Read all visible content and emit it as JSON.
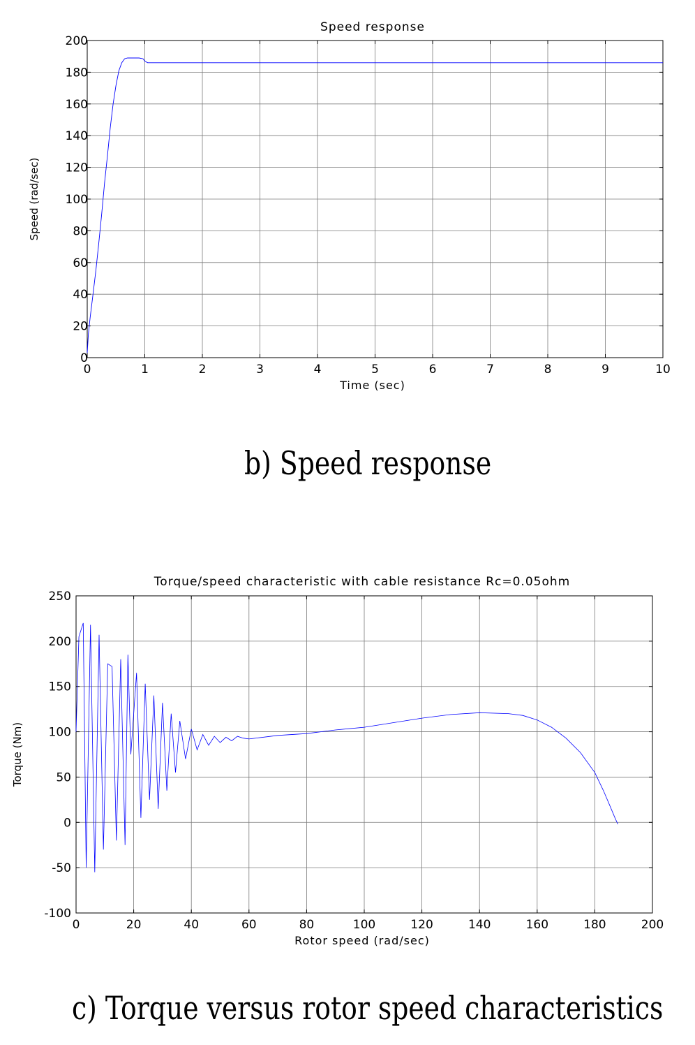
{
  "charts": [
    {
      "caption": "b) Speed response",
      "type": "line",
      "title": "Speed response",
      "xlabel": "Time (sec)",
      "ylabel": "Speed (rad/sec)",
      "xlim": [
        0,
        10
      ],
      "ylim": [
        0,
        200
      ],
      "xticks": [
        0,
        1,
        2,
        3,
        4,
        5,
        6,
        7,
        8,
        9,
        10
      ],
      "yticks": [
        0,
        20,
        40,
        60,
        80,
        100,
        120,
        140,
        160,
        180,
        200
      ],
      "grid": true,
      "color": "#0000ff",
      "series": [
        {
          "x": [
            0,
            0.02,
            0.05,
            0.1,
            0.15,
            0.2,
            0.25,
            0.3,
            0.35,
            0.4,
            0.45,
            0.5,
            0.55,
            0.6,
            0.65,
            0.7,
            0.8,
            0.9,
            0.97,
            1.0,
            1.05,
            2,
            3,
            4,
            5,
            6,
            7,
            8,
            9,
            10
          ],
          "y": [
            3,
            15,
            25,
            40,
            55,
            72,
            90,
            110,
            127,
            145,
            160,
            172,
            181,
            186,
            188.5,
            189,
            189,
            189,
            188.5,
            187,
            186,
            186,
            186,
            186,
            186,
            186,
            186,
            186,
            186,
            186
          ]
        }
      ]
    },
    {
      "caption": "c) Torque versus rotor speed characteristics",
      "type": "line",
      "title": "Torque/speed characteristic with cable resistance Rc=0.05ohm",
      "xlabel": "Rotor speed (rad/sec)",
      "ylabel": "Torque (Nm)",
      "xlim": [
        0,
        200
      ],
      "ylim": [
        -100,
        250
      ],
      "xticks": [
        0,
        20,
        40,
        60,
        80,
        100,
        120,
        140,
        160,
        180,
        200
      ],
      "yticks": [
        -100,
        -50,
        0,
        50,
        100,
        150,
        200,
        250
      ],
      "grid": true,
      "color": "#0000ff",
      "series": [
        {
          "x": [
            0,
            1,
            2.5,
            3.5,
            5,
            6.5,
            8,
            9.5,
            11,
            12.5,
            14,
            15.5,
            17,
            18,
            19,
            21,
            22.5,
            24,
            25.5,
            27,
            28.5,
            30,
            31.5,
            33,
            34.5,
            36,
            38,
            40,
            42,
            44,
            46,
            48,
            50,
            52,
            54,
            56,
            58,
            60,
            70,
            80,
            90,
            100,
            110,
            120,
            130,
            140,
            150,
            155,
            160,
            165,
            170,
            175,
            180,
            183,
            185,
            187,
            188
          ],
          "y": [
            100,
            205,
            220,
            -50,
            218,
            -55,
            207,
            -30,
            175,
            172,
            -20,
            180,
            -25,
            185,
            75,
            165,
            5,
            153,
            25,
            140,
            15,
            132,
            35,
            120,
            55,
            112,
            70,
            103,
            80,
            97,
            85,
            95,
            88,
            94,
            90,
            95,
            93,
            92,
            96,
            98,
            102,
            105,
            110,
            115,
            119,
            121,
            120,
            118,
            113,
            105,
            93,
            77,
            55,
            35,
            20,
            5,
            -2
          ]
        }
      ]
    }
  ]
}
